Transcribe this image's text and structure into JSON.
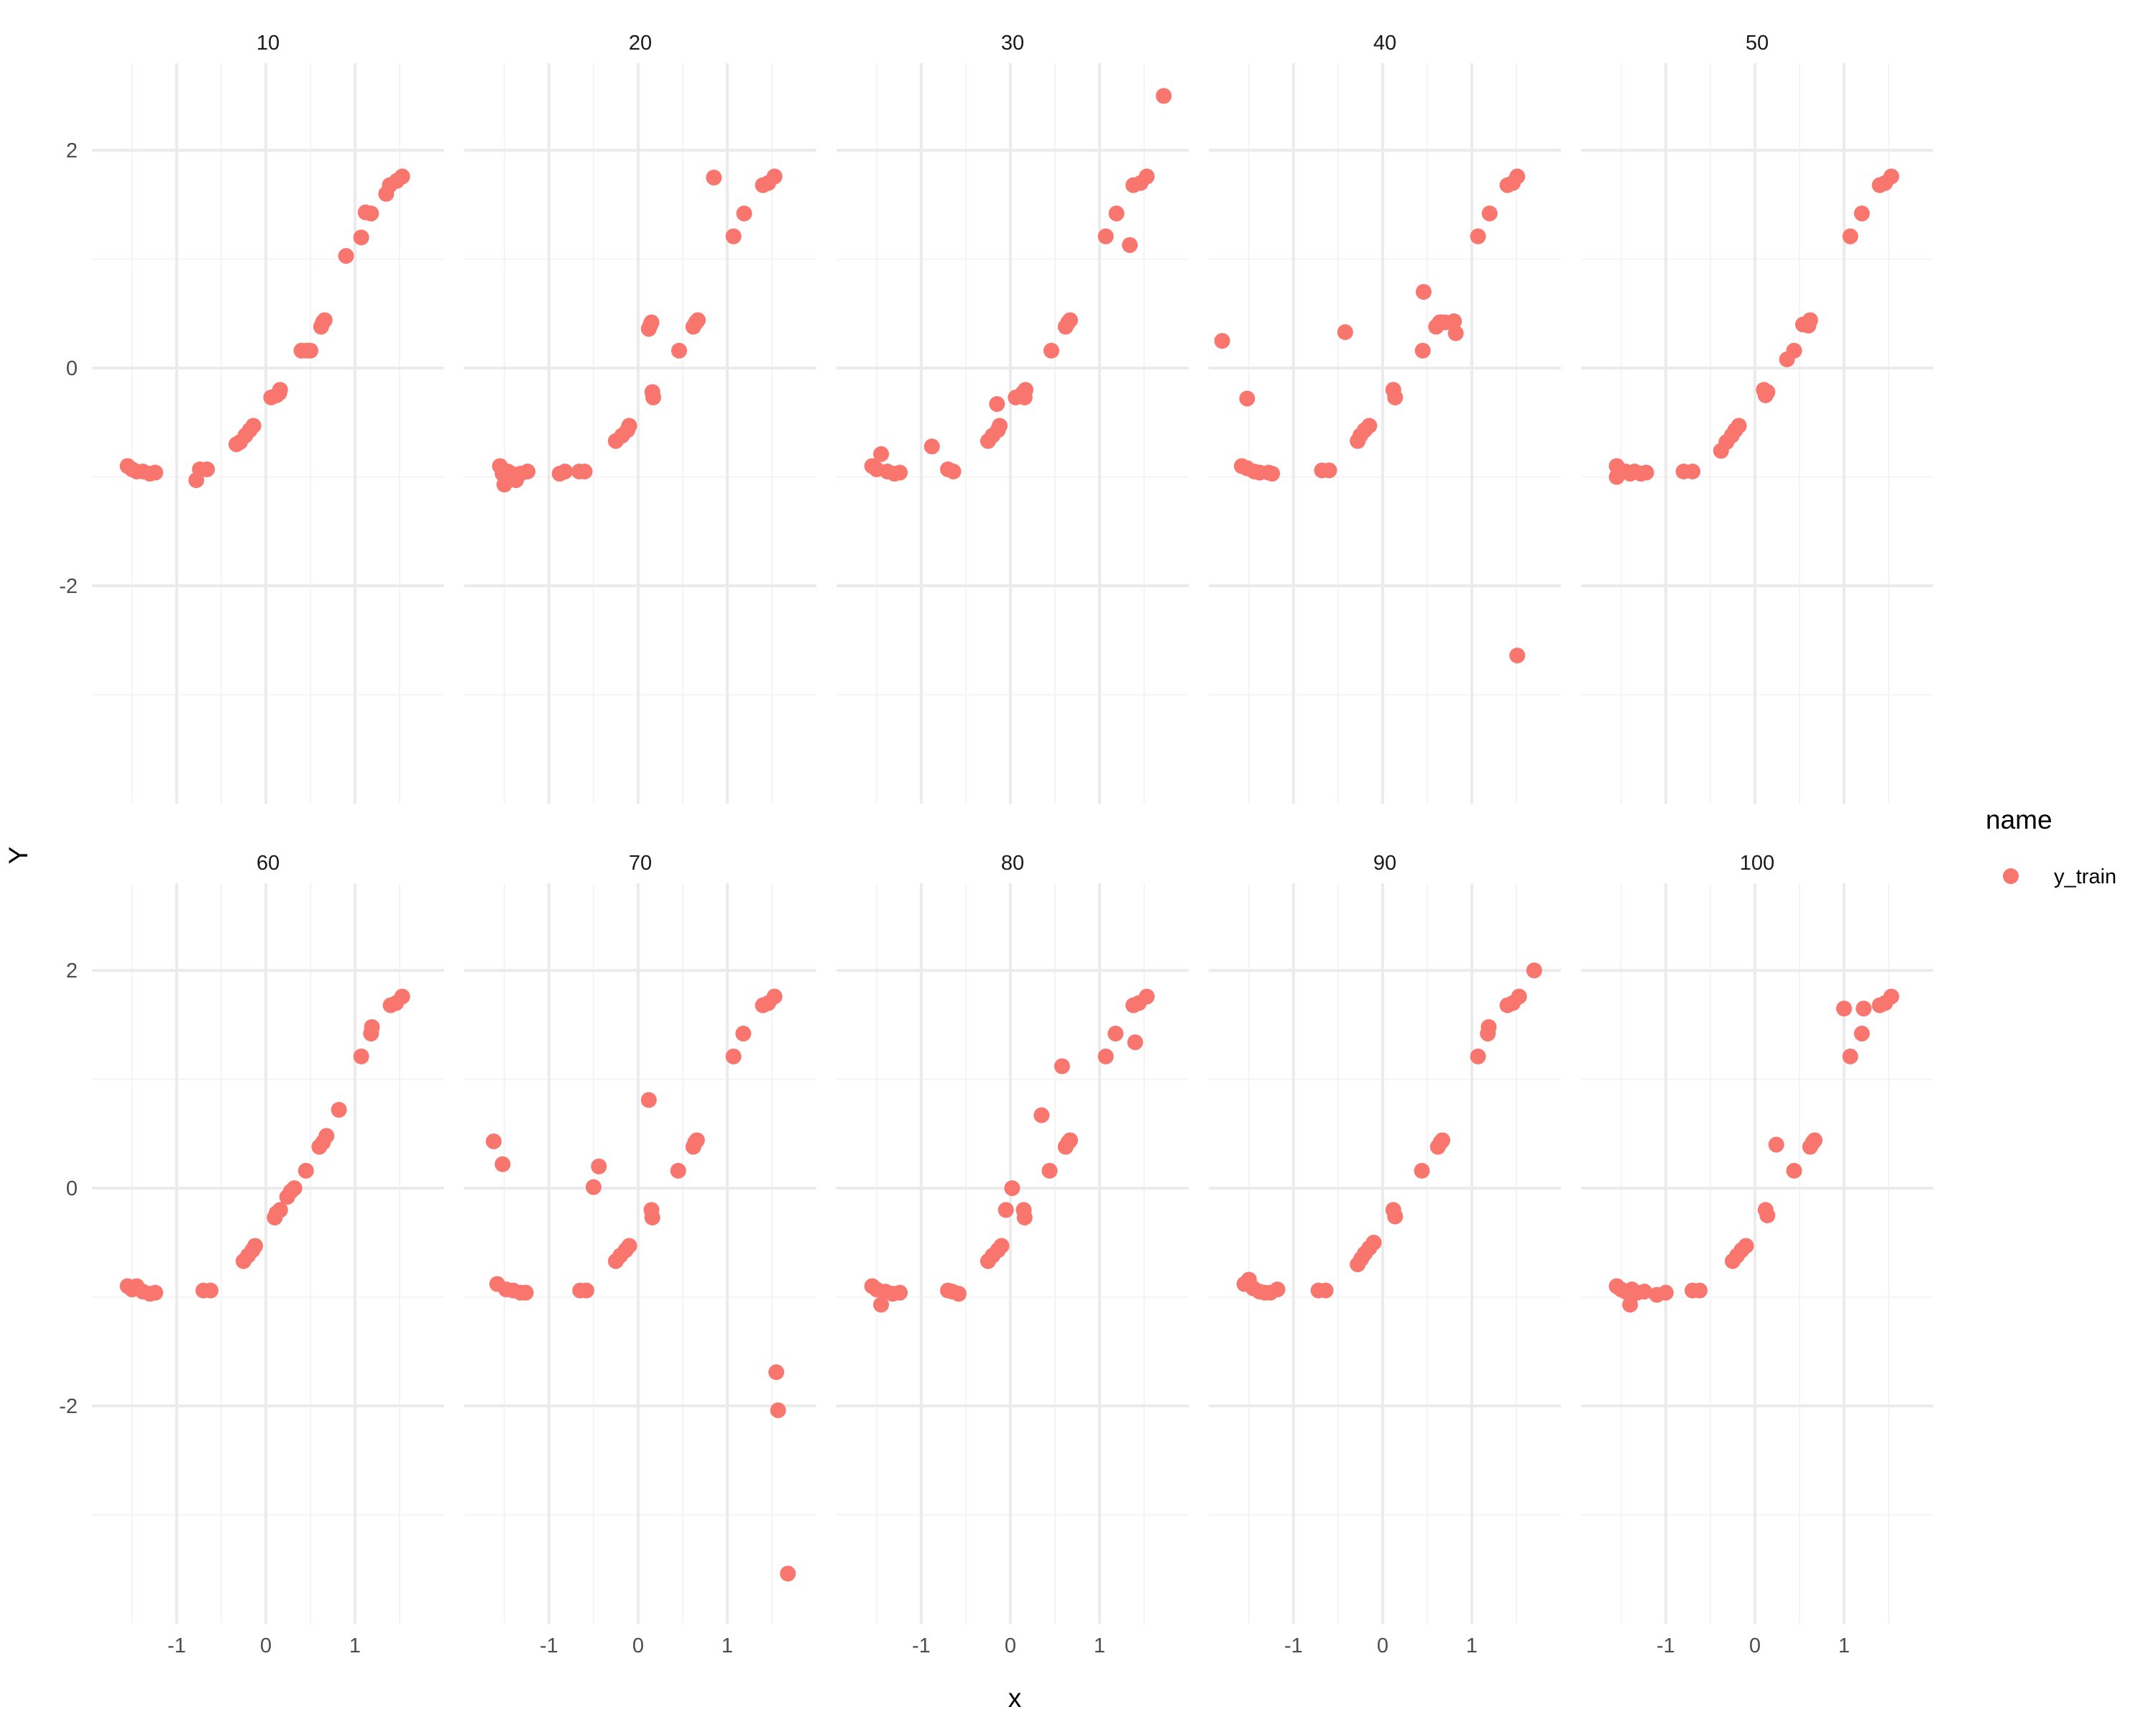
{
  "chart_data": {
    "type": "scatter",
    "facet_by": "name",
    "xlabel": "x",
    "ylabel": "Y",
    "xlim": [
      -1.95,
      2.0
    ],
    "ylim": [
      -4.0,
      2.8
    ],
    "x_ticks": [
      -1,
      0,
      1
    ],
    "x_tick_labels": [
      "-1",
      "0",
      "1"
    ],
    "y_ticks": [
      -2,
      0,
      2
    ],
    "y_tick_labels": [
      "-2",
      "0",
      "2"
    ],
    "grid": true,
    "legend": {
      "title": "name",
      "position": "right",
      "entries": [
        "y_train"
      ]
    },
    "colors": {
      "y_train": "#F8766D",
      "grid_major": "#EBEBEB",
      "grid_minor": "#F4F4F4"
    },
    "panels": [
      {
        "label": "10",
        "points": [
          [
            -1.55,
            -0.9
          ],
          [
            -1.5,
            -0.93
          ],
          [
            -1.45,
            -0.95
          ],
          [
            -1.38,
            -0.95
          ],
          [
            -1.3,
            -0.97
          ],
          [
            -1.24,
            -0.96
          ],
          [
            -0.78,
            -1.03
          ],
          [
            -0.74,
            -0.93
          ],
          [
            -0.66,
            -0.93
          ],
          [
            -0.33,
            -0.7
          ],
          [
            -0.29,
            -0.68
          ],
          [
            -0.23,
            -0.62
          ],
          [
            -0.18,
            -0.57
          ],
          [
            -0.14,
            -0.53
          ],
          [
            0.06,
            -0.27
          ],
          [
            0.12,
            -0.25
          ],
          [
            0.15,
            -0.23
          ],
          [
            0.16,
            -0.2
          ],
          [
            0.4,
            0.16
          ],
          [
            0.46,
            0.16
          ],
          [
            0.5,
            0.16
          ],
          [
            0.62,
            0.38
          ],
          [
            0.64,
            0.42
          ],
          [
            0.66,
            0.44
          ],
          [
            0.9,
            1.03
          ],
          [
            1.07,
            1.2
          ],
          [
            1.12,
            1.43
          ],
          [
            1.18,
            1.42
          ],
          [
            1.35,
            1.6
          ],
          [
            1.39,
            1.68
          ],
          [
            1.47,
            1.72
          ],
          [
            1.53,
            1.76
          ]
        ]
      },
      {
        "label": "20",
        "points": [
          [
            -1.55,
            -0.9
          ],
          [
            -1.52,
            -0.97
          ],
          [
            -1.5,
            -1.07
          ],
          [
            -1.46,
            -0.95
          ],
          [
            -1.42,
            -0.97
          ],
          [
            -1.37,
            -1.03
          ],
          [
            -1.32,
            -0.97
          ],
          [
            -1.24,
            -0.95
          ],
          [
            -0.88,
            -0.97
          ],
          [
            -0.82,
            -0.95
          ],
          [
            -0.66,
            -0.95
          ],
          [
            -0.6,
            -0.95
          ],
          [
            -0.25,
            -0.67
          ],
          [
            -0.18,
            -0.62
          ],
          [
            -0.12,
            -0.57
          ],
          [
            -0.1,
            -0.53
          ],
          [
            0.12,
            0.36
          ],
          [
            0.14,
            0.4
          ],
          [
            0.15,
            0.42
          ],
          [
            0.16,
            -0.22
          ],
          [
            0.17,
            -0.27
          ],
          [
            0.46,
            0.16
          ],
          [
            0.62,
            0.38
          ],
          [
            0.65,
            0.42
          ],
          [
            0.67,
            0.44
          ],
          [
            0.85,
            1.75
          ],
          [
            1.07,
            1.21
          ],
          [
            1.19,
            1.42
          ],
          [
            1.4,
            1.68
          ],
          [
            1.46,
            1.7
          ],
          [
            1.53,
            1.76
          ]
        ]
      },
      {
        "label": "30",
        "points": [
          [
            -1.55,
            -0.9
          ],
          [
            -1.5,
            -0.93
          ],
          [
            -1.45,
            -0.79
          ],
          [
            -1.38,
            -0.95
          ],
          [
            -1.3,
            -0.97
          ],
          [
            -1.24,
            -0.96
          ],
          [
            -0.88,
            -0.72
          ],
          [
            -0.7,
            -0.93
          ],
          [
            -0.64,
            -0.95
          ],
          [
            -0.25,
            -0.67
          ],
          [
            -0.2,
            -0.62
          ],
          [
            -0.14,
            -0.57
          ],
          [
            -0.12,
            -0.53
          ],
          [
            -0.15,
            -0.33
          ],
          [
            0.06,
            -0.27
          ],
          [
            0.12,
            -0.25
          ],
          [
            0.14,
            -0.23
          ],
          [
            0.17,
            -0.2
          ],
          [
            0.16,
            -0.27
          ],
          [
            0.46,
            0.16
          ],
          [
            0.62,
            0.38
          ],
          [
            0.65,
            0.42
          ],
          [
            0.67,
            0.44
          ],
          [
            1.07,
            1.21
          ],
          [
            1.19,
            1.42
          ],
          [
            1.34,
            1.13
          ],
          [
            1.38,
            1.68
          ],
          [
            1.46,
            1.7
          ],
          [
            1.53,
            1.76
          ],
          [
            1.72,
            2.5
          ]
        ]
      },
      {
        "label": "40",
        "points": [
          [
            -1.8,
            0.25
          ],
          [
            -1.58,
            -0.9
          ],
          [
            -1.52,
            -0.92
          ],
          [
            -1.52,
            -0.28
          ],
          [
            -1.44,
            -0.95
          ],
          [
            -1.38,
            -0.96
          ],
          [
            -1.28,
            -0.96
          ],
          [
            -1.24,
            -0.97
          ],
          [
            -0.68,
            -0.94
          ],
          [
            -0.6,
            -0.94
          ],
          [
            -0.42,
            0.33
          ],
          [
            -0.28,
            -0.67
          ],
          [
            -0.25,
            -0.62
          ],
          [
            -0.2,
            -0.57
          ],
          [
            -0.15,
            -0.53
          ],
          [
            0.12,
            -0.2
          ],
          [
            0.14,
            -0.27
          ],
          [
            0.45,
            0.16
          ],
          [
            0.46,
            0.7
          ],
          [
            0.6,
            0.38
          ],
          [
            0.64,
            0.42
          ],
          [
            0.66,
            0.42
          ],
          [
            0.7,
            0.42
          ],
          [
            0.8,
            0.43
          ],
          [
            0.82,
            0.32
          ],
          [
            1.07,
            1.21
          ],
          [
            1.2,
            1.42
          ],
          [
            1.4,
            1.68
          ],
          [
            1.46,
            1.7
          ],
          [
            1.51,
            1.76
          ],
          [
            1.51,
            -2.64
          ]
        ]
      },
      {
        "label": "50",
        "points": [
          [
            -1.55,
            -0.9
          ],
          [
            -1.55,
            -1.0
          ],
          [
            -1.45,
            -0.95
          ],
          [
            -1.4,
            -0.97
          ],
          [
            -1.35,
            -0.95
          ],
          [
            -1.28,
            -0.97
          ],
          [
            -1.22,
            -0.96
          ],
          [
            -0.8,
            -0.95
          ],
          [
            -0.7,
            -0.95
          ],
          [
            -0.38,
            -0.76
          ],
          [
            -0.32,
            -0.68
          ],
          [
            -0.26,
            -0.62
          ],
          [
            -0.22,
            -0.57
          ],
          [
            -0.18,
            -0.53
          ],
          [
            0.1,
            -0.2
          ],
          [
            0.12,
            -0.25
          ],
          [
            0.14,
            -0.22
          ],
          [
            0.36,
            0.08
          ],
          [
            0.44,
            0.16
          ],
          [
            0.54,
            0.4
          ],
          [
            0.6,
            0.39
          ],
          [
            0.62,
            0.44
          ],
          [
            1.07,
            1.21
          ],
          [
            1.2,
            1.42
          ],
          [
            1.4,
            1.68
          ],
          [
            1.46,
            1.7
          ],
          [
            1.53,
            1.76
          ]
        ]
      },
      {
        "label": "60",
        "points": [
          [
            -1.55,
            -0.9
          ],
          [
            -1.5,
            -0.93
          ],
          [
            -1.45,
            -0.9
          ],
          [
            -1.38,
            -0.95
          ],
          [
            -1.3,
            -0.97
          ],
          [
            -1.24,
            -0.96
          ],
          [
            -0.7,
            -0.94
          ],
          [
            -0.62,
            -0.94
          ],
          [
            -0.25,
            -0.67
          ],
          [
            -0.2,
            -0.62
          ],
          [
            -0.15,
            -0.57
          ],
          [
            -0.12,
            -0.53
          ],
          [
            0.1,
            -0.27
          ],
          [
            0.12,
            -0.23
          ],
          [
            0.16,
            -0.2
          ],
          [
            0.24,
            -0.08
          ],
          [
            0.28,
            -0.03
          ],
          [
            0.32,
            0.0
          ],
          [
            0.45,
            0.16
          ],
          [
            0.6,
            0.38
          ],
          [
            0.64,
            0.42
          ],
          [
            0.68,
            0.48
          ],
          [
            0.82,
            0.72
          ],
          [
            1.07,
            1.21
          ],
          [
            1.18,
            1.42
          ],
          [
            1.19,
            1.48
          ],
          [
            1.4,
            1.68
          ],
          [
            1.46,
            1.7
          ],
          [
            1.53,
            1.76
          ]
        ]
      },
      {
        "label": "70",
        "points": [
          [
            -1.62,
            0.43
          ],
          [
            -1.52,
            0.22
          ],
          [
            -1.58,
            -0.88
          ],
          [
            -1.48,
            -0.93
          ],
          [
            -1.4,
            -0.94
          ],
          [
            -1.32,
            -0.96
          ],
          [
            -1.26,
            -0.96
          ],
          [
            -0.65,
            -0.94
          ],
          [
            -0.58,
            -0.94
          ],
          [
            -0.5,
            0.01
          ],
          [
            -0.44,
            0.2
          ],
          [
            -0.25,
            -0.67
          ],
          [
            -0.2,
            -0.62
          ],
          [
            -0.14,
            -0.57
          ],
          [
            -0.1,
            -0.53
          ],
          [
            0.12,
            0.81
          ],
          [
            0.15,
            -0.2
          ],
          [
            0.16,
            -0.27
          ],
          [
            0.45,
            0.16
          ],
          [
            0.62,
            0.38
          ],
          [
            0.64,
            0.42
          ],
          [
            0.66,
            0.44
          ],
          [
            1.07,
            1.21
          ],
          [
            1.18,
            1.42
          ],
          [
            1.4,
            1.68
          ],
          [
            1.46,
            1.7
          ],
          [
            1.53,
            1.76
          ],
          [
            1.55,
            -1.69
          ],
          [
            1.57,
            -2.04
          ],
          [
            1.68,
            -3.54
          ]
        ]
      },
      {
        "label": "80",
        "points": [
          [
            -1.55,
            -0.9
          ],
          [
            -1.5,
            -0.93
          ],
          [
            -1.45,
            -1.07
          ],
          [
            -1.4,
            -0.95
          ],
          [
            -1.32,
            -0.97
          ],
          [
            -1.24,
            -0.96
          ],
          [
            -0.7,
            -0.94
          ],
          [
            -0.65,
            -0.95
          ],
          [
            -0.58,
            -0.97
          ],
          [
            -0.25,
            -0.67
          ],
          [
            -0.2,
            -0.62
          ],
          [
            -0.14,
            -0.57
          ],
          [
            -0.1,
            -0.53
          ],
          [
            -0.05,
            -0.2
          ],
          [
            0.02,
            0.0
          ],
          [
            0.15,
            -0.2
          ],
          [
            0.16,
            -0.27
          ],
          [
            0.35,
            0.67
          ],
          [
            0.44,
            0.16
          ],
          [
            0.58,
            1.12
          ],
          [
            0.62,
            0.38
          ],
          [
            0.65,
            0.42
          ],
          [
            0.67,
            0.44
          ],
          [
            1.07,
            1.21
          ],
          [
            1.18,
            1.42
          ],
          [
            1.38,
            1.68
          ],
          [
            1.4,
            1.34
          ],
          [
            1.44,
            1.7
          ],
          [
            1.53,
            1.76
          ]
        ]
      },
      {
        "label": "90",
        "points": [
          [
            -1.55,
            -0.88
          ],
          [
            -1.5,
            -0.84
          ],
          [
            -1.45,
            -0.92
          ],
          [
            -1.38,
            -0.95
          ],
          [
            -1.32,
            -0.96
          ],
          [
            -1.26,
            -0.96
          ],
          [
            -1.18,
            -0.93
          ],
          [
            -0.72,
            -0.94
          ],
          [
            -0.64,
            -0.94
          ],
          [
            -0.28,
            -0.7
          ],
          [
            -0.24,
            -0.65
          ],
          [
            -0.2,
            -0.6
          ],
          [
            -0.15,
            -0.55
          ],
          [
            -0.1,
            -0.5
          ],
          [
            0.12,
            -0.2
          ],
          [
            0.14,
            -0.26
          ],
          [
            0.44,
            0.16
          ],
          [
            0.62,
            0.38
          ],
          [
            0.65,
            0.42
          ],
          [
            0.67,
            0.44
          ],
          [
            1.07,
            1.21
          ],
          [
            1.18,
            1.42
          ],
          [
            1.19,
            1.48
          ],
          [
            1.4,
            1.68
          ],
          [
            1.46,
            1.7
          ],
          [
            1.53,
            1.76
          ],
          [
            1.7,
            2.0
          ]
        ]
      },
      {
        "label": "100",
        "points": [
          [
            -1.55,
            -0.9
          ],
          [
            -1.5,
            -0.93
          ],
          [
            -1.45,
            -0.95
          ],
          [
            -1.4,
            -1.07
          ],
          [
            -1.38,
            -0.93
          ],
          [
            -1.32,
            -0.96
          ],
          [
            -1.24,
            -0.95
          ],
          [
            -1.1,
            -0.98
          ],
          [
            -1.0,
            -0.96
          ],
          [
            -0.7,
            -0.94
          ],
          [
            -0.62,
            -0.94
          ],
          [
            -0.25,
            -0.67
          ],
          [
            -0.2,
            -0.62
          ],
          [
            -0.15,
            -0.57
          ],
          [
            -0.1,
            -0.53
          ],
          [
            0.12,
            -0.2
          ],
          [
            0.14,
            -0.25
          ],
          [
            0.24,
            0.4
          ],
          [
            0.44,
            0.16
          ],
          [
            0.62,
            0.38
          ],
          [
            0.65,
            0.42
          ],
          [
            0.67,
            0.44
          ],
          [
            1.0,
            1.65
          ],
          [
            1.07,
            1.21
          ],
          [
            1.2,
            1.42
          ],
          [
            1.22,
            1.65
          ],
          [
            1.4,
            1.68
          ],
          [
            1.46,
            1.7
          ],
          [
            1.53,
            1.76
          ]
        ]
      }
    ]
  }
}
